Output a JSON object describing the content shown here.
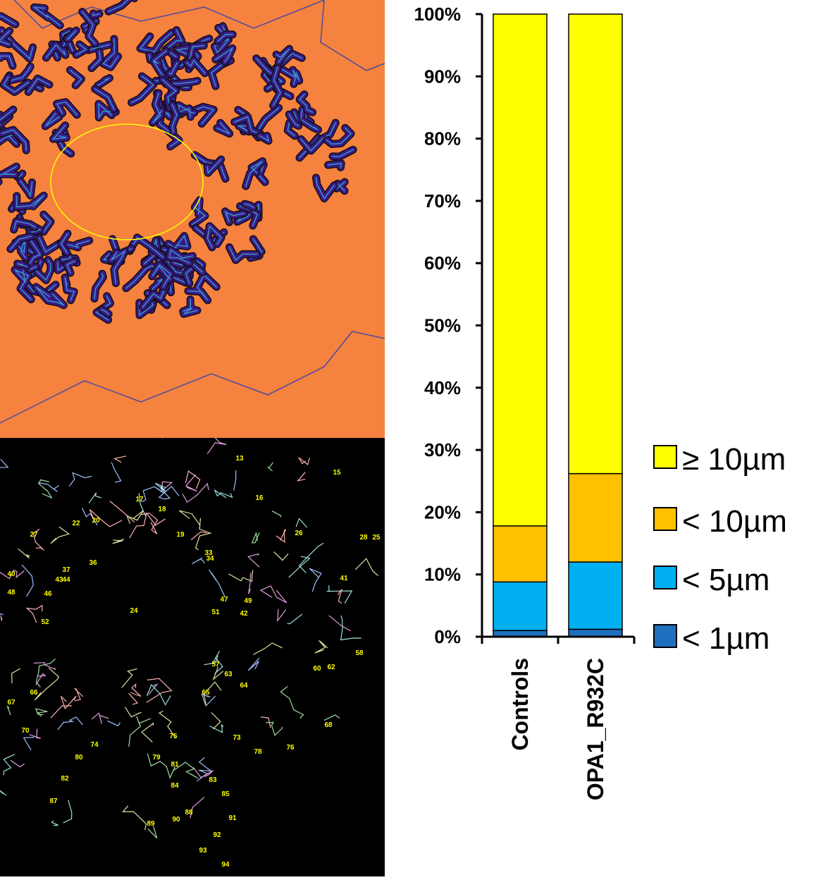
{
  "chart_data": {
    "type": "bar",
    "stacked": true,
    "categories": [
      "Controls",
      "OPA1_R932C"
    ],
    "series": [
      {
        "name": "< 1µm",
        "color": "#1f6fbf",
        "values": [
          1,
          1.2
        ]
      },
      {
        "name": "< 5µm",
        "color": "#00b0f0",
        "values": [
          7.8,
          10.8
        ]
      },
      {
        "name": "< 10µm",
        "color": "#ffc000",
        "values": [
          9,
          14.2
        ]
      },
      {
        "name": "≥ 10µm",
        "color": "#ffff00",
        "values": [
          82.2,
          73.8
        ]
      }
    ],
    "legend_order": [
      "≥ 10µm",
      "< 10µm",
      "< 5µm",
      "< 1µm"
    ],
    "ylim": [
      0,
      100
    ],
    "yticks": [
      "0%",
      "10%",
      "20%",
      "30%",
      "40%",
      "50%",
      "60%",
      "70%",
      "80%",
      "90%",
      "100%"
    ],
    "legend_position": "right"
  },
  "micrograph_labels": [
    "13",
    "15",
    "16",
    "17",
    "18",
    "19",
    "20",
    "22",
    "24",
    "25",
    "26",
    "27",
    "28",
    "33",
    "34",
    "36",
    "37",
    "40",
    "41",
    "42",
    "43",
    "44",
    "46",
    "47",
    "48",
    "49",
    "51",
    "52",
    "57",
    "58",
    "60",
    "62",
    "63",
    "64",
    "65",
    "66",
    "67",
    "68",
    "70",
    "73",
    "74",
    "75",
    "76",
    "78",
    "79",
    "80",
    "81",
    "82",
    "83",
    "84",
    "85",
    "87",
    "88",
    "89",
    "90",
    "91",
    "92",
    "93",
    "94"
  ],
  "colors": {
    "top_background": "#f5823f",
    "bottom_background": "#000000",
    "mito": "#3a1a8a",
    "nucleus_outline": "#ffff00"
  }
}
